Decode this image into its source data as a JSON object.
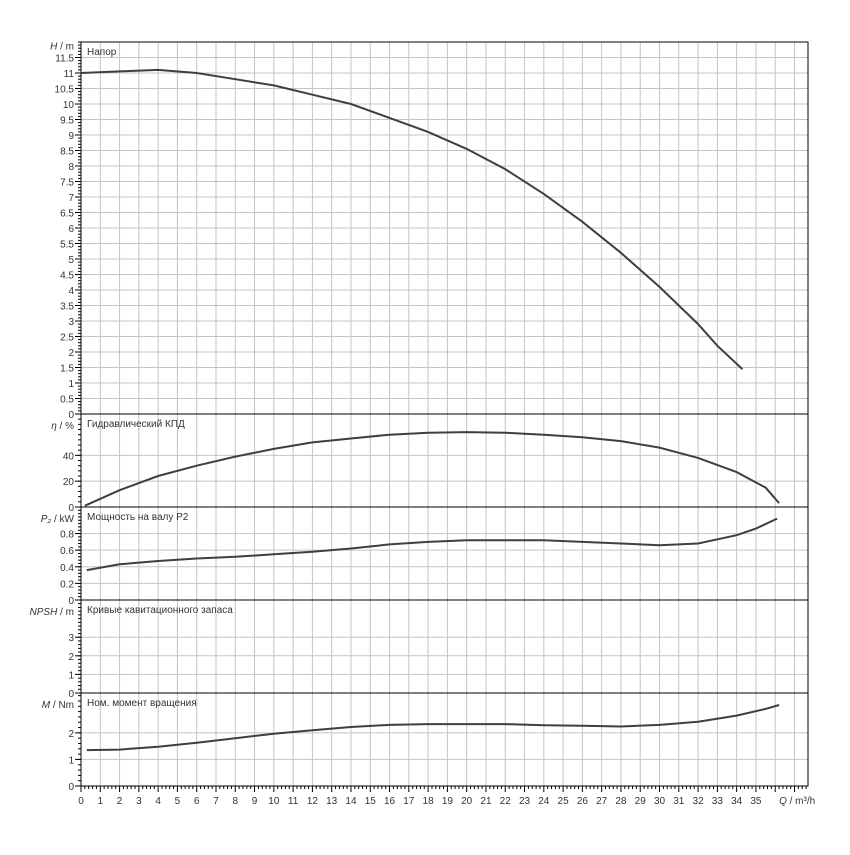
{
  "chart_data": [
    {
      "type": "line",
      "title": "Напор",
      "ylabel_sym": "H",
      "ylabel_unit": " / m",
      "ylim": [
        0,
        12
      ],
      "yticks": [
        0,
        0.5,
        1,
        1.5,
        2,
        2.5,
        3,
        3.5,
        4,
        4.5,
        5,
        5.5,
        6,
        6.5,
        7,
        7.5,
        8,
        8.5,
        9,
        9.5,
        10,
        10.5,
        11,
        11.5
      ],
      "series": [
        {
          "x": [
            0,
            2,
            4,
            6,
            8,
            10,
            12,
            14,
            16,
            18,
            20,
            22,
            24,
            26,
            28,
            30,
            32,
            33,
            34.3
          ],
          "y": [
            11.0,
            11.05,
            11.1,
            11.0,
            10.8,
            10.6,
            10.3,
            10.0,
            9.55,
            9.1,
            8.55,
            7.9,
            7.1,
            6.2,
            5.2,
            4.1,
            2.9,
            2.2,
            1.45
          ]
        }
      ]
    },
    {
      "type": "line",
      "title": "Гидравлический КПД",
      "ylabel_sym": "η",
      "ylabel_unit": " / %",
      "ylim": [
        0,
        72
      ],
      "yticks": [
        0,
        20,
        40
      ],
      "series": [
        {
          "x": [
            0.2,
            2,
            4,
            6,
            8,
            10,
            12,
            14,
            16,
            18,
            20,
            22,
            24,
            26,
            28,
            30,
            32,
            34,
            35.5,
            36.2
          ],
          "y": [
            1,
            13,
            24,
            32,
            39,
            45,
            50,
            53,
            56,
            57.5,
            58,
            57.5,
            56,
            54,
            51,
            46,
            38,
            27,
            15,
            3
          ]
        }
      ]
    },
    {
      "type": "line",
      "title": "Мощность на валу P2",
      "ylabel_sym": "P₂",
      "ylabel_unit": " / kW",
      "ylim": [
        0,
        1.12
      ],
      "yticks": [
        0,
        0.2,
        0.4,
        0.6,
        0.8
      ],
      "series": [
        {
          "x": [
            0.3,
            2,
            4,
            6,
            8,
            10,
            12,
            14,
            16,
            18,
            20,
            22,
            24,
            26,
            28,
            30,
            32,
            34,
            35,
            36.1
          ],
          "y": [
            0.36,
            0.43,
            0.47,
            0.5,
            0.52,
            0.55,
            0.58,
            0.62,
            0.67,
            0.7,
            0.72,
            0.72,
            0.72,
            0.7,
            0.68,
            0.66,
            0.68,
            0.78,
            0.86,
            0.98
          ]
        }
      ]
    },
    {
      "type": "line",
      "title": "Кривые кавитационного запаса",
      "ylabel_sym": "NPSH",
      "ylabel_unit": " / m",
      "ylim": [
        0,
        5
      ],
      "yticks": [
        0,
        1,
        2,
        3
      ],
      "series": []
    },
    {
      "type": "line",
      "title": "Ном. момент вращения",
      "ylabel_sym": "M",
      "ylabel_unit": " / Nm",
      "ylim": [
        0,
        3.5
      ],
      "yticks": [
        0,
        1,
        2
      ],
      "series": [
        {
          "x": [
            0.3,
            2,
            4,
            6,
            8,
            10,
            12,
            14,
            16,
            18,
            20,
            22,
            24,
            26,
            28,
            30,
            32,
            34,
            35.5,
            36.2
          ],
          "y": [
            1.35,
            1.37,
            1.48,
            1.63,
            1.8,
            1.97,
            2.1,
            2.22,
            2.3,
            2.33,
            2.33,
            2.33,
            2.29,
            2.27,
            2.24,
            2.3,
            2.42,
            2.65,
            2.9,
            3.05
          ]
        }
      ]
    }
  ],
  "x_axis": {
    "label_sym": "Q",
    "label_unit": " / m³/h",
    "xlim": [
      0,
      37.7
    ],
    "ticks": [
      0,
      1,
      2,
      3,
      4,
      5,
      6,
      7,
      8,
      9,
      10,
      11,
      12,
      13,
      14,
      15,
      16,
      17,
      18,
      19,
      20,
      21,
      22,
      23,
      24,
      25,
      26,
      27,
      28,
      29,
      30,
      31,
      32,
      33,
      34,
      35
    ],
    "grid": true
  },
  "colors": {
    "curve": "#3a4048",
    "grid": "#c4c4c4"
  }
}
